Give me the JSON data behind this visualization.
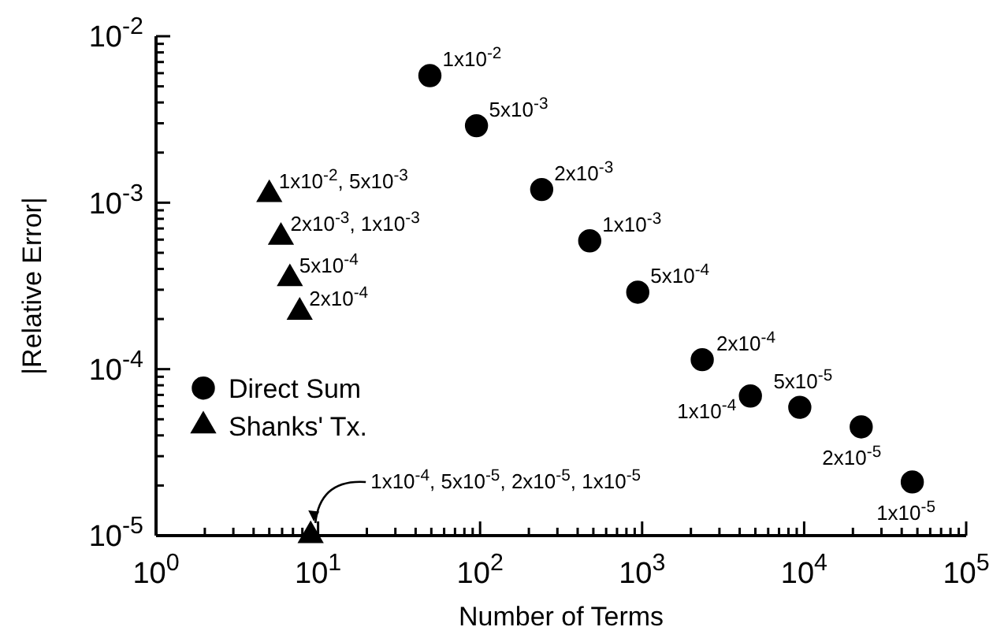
{
  "chart_data": {
    "type": "scatter",
    "xlabel": "Number of Terms",
    "ylabel": "|Relative Error|",
    "log": "xy",
    "grid": false,
    "legend": "left",
    "xlim": [
      1,
      100000
    ],
    "ylim": [
      1e-05,
      0.01
    ],
    "xticks": [
      {
        "value": 1,
        "label": "10$^{0}$"
      },
      {
        "value": 2,
        "label": null
      },
      {
        "value": 3,
        "label": null
      },
      {
        "value": 4,
        "label": null
      },
      {
        "value": 5,
        "label": null
      },
      {
        "value": 6,
        "label": null
      },
      {
        "value": 7,
        "label": null
      },
      {
        "value": 8,
        "label": null
      },
      {
        "value": 9,
        "label": null
      },
      {
        "value": 10,
        "label": "10$^{1}$"
      },
      {
        "value": 20,
        "label": null
      },
      {
        "value": 30,
        "label": null
      },
      {
        "value": 40,
        "label": null
      },
      {
        "value": 50,
        "label": null
      },
      {
        "value": 60,
        "label": null
      },
      {
        "value": 70,
        "label": null
      },
      {
        "value": 80,
        "label": null
      },
      {
        "value": 90,
        "label": null
      },
      {
        "value": 100,
        "label": "10$^{2}$"
      },
      {
        "value": 200,
        "label": null
      },
      {
        "value": 300,
        "label": null
      },
      {
        "value": 400,
        "label": null
      },
      {
        "value": 500,
        "label": null
      },
      {
        "value": 600,
        "label": null
      },
      {
        "value": 700,
        "label": null
      },
      {
        "value": 800,
        "label": null
      },
      {
        "value": 900,
        "label": null
      },
      {
        "value": 1000,
        "label": "10$^{3}$"
      },
      {
        "value": 2000,
        "label": null
      },
      {
        "value": 3000,
        "label": null
      },
      {
        "value": 4000,
        "label": null
      },
      {
        "value": 5000,
        "label": null
      },
      {
        "value": 6000,
        "label": null
      },
      {
        "value": 7000,
        "label": null
      },
      {
        "value": 8000,
        "label": null
      },
      {
        "value": 9000,
        "label": null
      },
      {
        "value": 10000,
        "label": "10$^{4}$"
      },
      {
        "value": 20000,
        "label": null
      },
      {
        "value": 30000,
        "label": null
      },
      {
        "value": 40000,
        "label": null
      },
      {
        "value": 50000,
        "label": null
      },
      {
        "value": 60000,
        "label": null
      },
      {
        "value": 70000,
        "label": null
      },
      {
        "value": 80000,
        "label": null
      },
      {
        "value": 90000,
        "label": null
      },
      {
        "value": 100000,
        "label": "10$^{5}$"
      }
    ],
    "yticks": [
      {
        "value": 1e-05,
        "label": "10$^{-5}$"
      },
      {
        "value": 2e-05,
        "label": null
      },
      {
        "value": 3e-05,
        "label": null
      },
      {
        "value": 4e-05,
        "label": null
      },
      {
        "value": 5e-05,
        "label": null
      },
      {
        "value": 6e-05,
        "label": null
      },
      {
        "value": 7e-05,
        "label": null
      },
      {
        "value": 8e-05,
        "label": null
      },
      {
        "value": 9e-05,
        "label": null
      },
      {
        "value": 0.0001,
        "label": "10$^{-4}$"
      },
      {
        "value": 0.0002,
        "label": null
      },
      {
        "value": 0.0003,
        "label": null
      },
      {
        "value": 0.0004,
        "label": null
      },
      {
        "value": 0.0005,
        "label": null
      },
      {
        "value": 0.0006,
        "label": null
      },
      {
        "value": 0.0007,
        "label": null
      },
      {
        "value": 0.0008,
        "label": null
      },
      {
        "value": 0.0009,
        "label": null
      },
      {
        "value": 0.001,
        "label": "10$^{-3}$"
      },
      {
        "value": 0.002,
        "label": null
      },
      {
        "value": 0.003,
        "label": null
      },
      {
        "value": 0.004,
        "label": null
      },
      {
        "value": 0.005,
        "label": null
      },
      {
        "value": 0.006,
        "label": null
      },
      {
        "value": 0.007,
        "label": null
      },
      {
        "value": 0.008,
        "label": null
      },
      {
        "value": 0.009,
        "label": null
      },
      {
        "value": 0.01,
        "label": "10$^{-2}$"
      }
    ],
    "series": [
      {
        "name": "Direct Sum",
        "color": "#000000",
        "marker": "circle",
        "x": [
          49,
          95,
          240,
          475,
          940,
          2350,
          4660,
          9400,
          22500,
          46500
        ],
        "values": [
          0.0058,
          0.0029,
          0.0012,
          0.00059,
          0.00029,
          0.000114,
          6.9e-05,
          5.9e-05,
          4.5e-05,
          2.1e-05
        ]
      },
      {
        "name": "Shanks' Tx.",
        "color": "#000000",
        "marker": "triangle",
        "x": [
          5,
          5.9,
          6.7,
          7.7,
          9
        ],
        "values": [
          0.00112,
          0.00062,
          0.00035,
          0.00022,
          1e-05
        ]
      }
    ],
    "annotations": [
      {
        "text": "1x10$^{-2}$",
        "x": 49,
        "y": 0.0058
      },
      {
        "text": "5x10$^{-3}$",
        "x": 95,
        "y": 0.0029
      },
      {
        "text": "2x10$^{-3}$",
        "x": 240,
        "y": 0.0012
      },
      {
        "text": "1x10$^{-3}$",
        "x": 475,
        "y": 0.00059
      },
      {
        "text": "5x10$^{-4}$",
        "x": 940,
        "y": 0.00029
      },
      {
        "text": "2x10$^{-4}$",
        "x": 2350,
        "y": 0.000114
      },
      {
        "text": "1x10$^{-4}$",
        "x": 4660,
        "y": 6.9e-05
      },
      {
        "text": "5x10$^{-5}$",
        "x": 9400,
        "y": 5.9e-05
      },
      {
        "text": "2x10$^{-5}$",
        "x": 22500,
        "y": 4.5e-05
      },
      {
        "text": "1x10$^{-5}$",
        "x": 46500,
        "y": 2.1e-05
      },
      {
        "text": "1x10$^{-2}$, 5x10$^{-3}$",
        "x": 5,
        "y": 0.00112
      },
      {
        "text": "2x10$^{-3}$, 1x10$^{-3}$",
        "x": 5.9,
        "y": 0.00062
      },
      {
        "text": "5x10$^{-4}$",
        "x": 6.7,
        "y": 0.00035
      },
      {
        "text": "2x10$^{-4}$",
        "x": 7.7,
        "y": 0.00022
      },
      {
        "text": "1x10$^{-4}$, 5x10$^{-5}$, 2x10$^{-5}$, 1x10$^{-5}$",
        "x": 9,
        "y": 1e-05
      }
    ]
  }
}
